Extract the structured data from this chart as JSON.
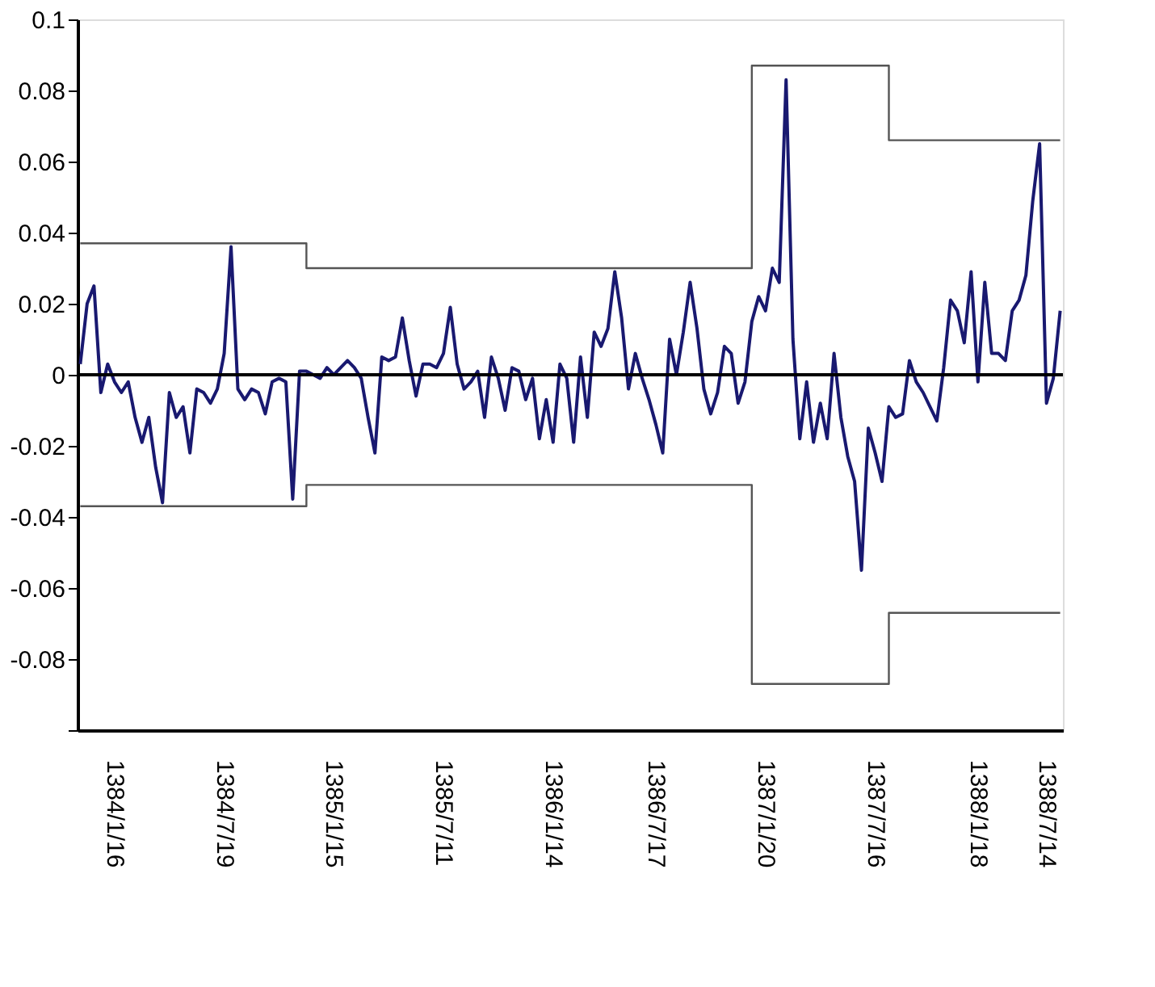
{
  "chart_data": {
    "type": "line",
    "categories": [
      null,
      null,
      null,
      null,
      null,
      "1384/1/16",
      null,
      null,
      null,
      null,
      null,
      null,
      null,
      null,
      null,
      null,
      null,
      null,
      null,
      null,
      null,
      "1384/7/19",
      null,
      null,
      null,
      null,
      null,
      null,
      null,
      null,
      null,
      null,
      null,
      null,
      null,
      null,
      null,
      "1385/1/15",
      null,
      null,
      null,
      null,
      null,
      null,
      null,
      null,
      null,
      null,
      null,
      null,
      null,
      null,
      null,
      "1385/7/11",
      null,
      null,
      null,
      null,
      null,
      null,
      null,
      null,
      null,
      null,
      null,
      null,
      null,
      null,
      null,
      "1386/1/14",
      null,
      null,
      null,
      null,
      null,
      null,
      null,
      null,
      null,
      null,
      null,
      null,
      null,
      null,
      "1386/7/17",
      null,
      null,
      null,
      null,
      null,
      null,
      null,
      null,
      null,
      null,
      null,
      null,
      null,
      null,
      null,
      "1387/1/20",
      null,
      null,
      null,
      null,
      null,
      null,
      null,
      null,
      null,
      null,
      null,
      null,
      null,
      null,
      null,
      "1387/7/16",
      null,
      null,
      null,
      null,
      null,
      null,
      null,
      null,
      null,
      null,
      null,
      null,
      null,
      null,
      "1388/1/18",
      null,
      null,
      null,
      null,
      null,
      null,
      null,
      null,
      null,
      "1388/7/14",
      null,
      null
    ],
    "series": [
      {
        "color": "#191970",
        "values": [
          0.003,
          0.02,
          0.025,
          -0.005,
          0.003,
          -0.002,
          -0.005,
          -0.002,
          -0.012,
          -0.019,
          -0.012,
          -0.026,
          -0.036,
          -0.005,
          -0.012,
          -0.009,
          -0.022,
          -0.004,
          -0.005,
          -0.008,
          -0.004,
          0.006,
          0.036,
          -0.004,
          -0.007,
          -0.004,
          -0.005,
          -0.011,
          -0.002,
          -0.001,
          -0.002,
          -0.035,
          0.001,
          0.001,
          0,
          -0.001,
          0.002,
          0,
          0.002,
          0.004,
          0.002,
          -0.001,
          -0.012,
          -0.022,
          0.005,
          0.004,
          0.005,
          0.016,
          0.004,
          -0.006,
          0.003,
          0.003,
          0.002,
          0.006,
          0.019,
          0.003,
          -0.004,
          -0.002,
          0.001,
          -0.012,
          0.005,
          -0.001,
          -0.01,
          0.002,
          0.001,
          -0.007,
          -0.001,
          -0.018,
          -0.007,
          -0.019,
          0.003,
          -0.001,
          -0.019,
          0.005,
          -0.012,
          0.012,
          0.008,
          0.013,
          0.029,
          0.016,
          -0.004,
          0.006,
          -0.001,
          -0.007,
          -0.014,
          -0.022,
          0.01,
          0,
          0.012,
          0.026,
          0.013,
          -0.004,
          -0.011,
          -0.005,
          0.008,
          0.006,
          -0.008,
          -0.002,
          0.015,
          0.022,
          0.018,
          0.03,
          0.026,
          0.083,
          0.01,
          -0.018,
          -0.002,
          -0.019,
          -0.008,
          -0.018,
          0.006,
          -0.012,
          -0.023,
          -0.03,
          -0.055,
          -0.015,
          -0.022,
          -0.03,
          -0.009,
          -0.012,
          -0.011,
          0.004,
          -0.002,
          -0.005,
          -0.009,
          -0.013,
          0.002,
          0.021,
          0.018,
          0.009,
          0.029,
          -0.002,
          0.026,
          0.006,
          0.006,
          0.004,
          0.018,
          0.021,
          0.028,
          0.049,
          0.065,
          -0.008,
          -0.001,
          0.018
        ]
      },
      {
        "type": "step",
        "color": "#555555",
        "values": [
          0.037,
          0.037,
          0.037,
          0.037,
          0.037,
          0.037,
          0.037,
          0.037,
          0.037,
          0.037,
          0.037,
          0.037,
          0.037,
          0.037,
          0.037,
          0.037,
          0.037,
          0.037,
          0.037,
          0.037,
          0.037,
          0.037,
          0.037,
          0.037,
          0.037,
          0.037,
          0.037,
          0.037,
          0.037,
          0.037,
          0.037,
          0.037,
          0.037,
          0.03,
          0.03,
          0.03,
          0.03,
          0.03,
          0.03,
          0.03,
          0.03,
          0.03,
          0.03,
          0.03,
          0.03,
          0.03,
          0.03,
          0.03,
          0.03,
          0.03,
          0.03,
          0.03,
          0.03,
          0.03,
          0.03,
          0.03,
          0.03,
          0.03,
          0.03,
          0.03,
          0.03,
          0.03,
          0.03,
          0.03,
          0.03,
          0.03,
          0.03,
          0.03,
          0.03,
          0.03,
          0.03,
          0.03,
          0.03,
          0.03,
          0.03,
          0.03,
          0.03,
          0.03,
          0.03,
          0.03,
          0.03,
          0.03,
          0.03,
          0.03,
          0.03,
          0.03,
          0.03,
          0.03,
          0.03,
          0.03,
          0.03,
          0.03,
          0.03,
          0.03,
          0.03,
          0.03,
          0.03,
          0.03,
          0.087,
          0.087,
          0.087,
          0.087,
          0.087,
          0.087,
          0.087,
          0.087,
          0.087,
          0.087,
          0.087,
          0.087,
          0.087,
          0.087,
          0.087,
          0.087,
          0.087,
          0.087,
          0.087,
          0.087,
          0.066,
          0.066,
          0.066,
          0.066,
          0.066,
          0.066,
          0.066,
          0.066,
          0.066,
          0.066,
          0.066,
          0.066,
          0.066,
          0.066,
          0.066,
          0.066,
          0.066,
          0.066,
          0.066,
          0.066,
          0.066,
          0.066,
          0.066,
          0.066,
          0.066,
          0.066
        ]
      },
      {
        "type": "step",
        "color": "#555555",
        "values": [
          -0.037,
          -0.037,
          -0.037,
          -0.037,
          -0.037,
          -0.037,
          -0.037,
          -0.037,
          -0.037,
          -0.037,
          -0.037,
          -0.037,
          -0.037,
          -0.037,
          -0.037,
          -0.037,
          -0.037,
          -0.037,
          -0.037,
          -0.037,
          -0.037,
          -0.037,
          -0.037,
          -0.037,
          -0.037,
          -0.037,
          -0.037,
          -0.037,
          -0.037,
          -0.037,
          -0.037,
          -0.037,
          -0.037,
          -0.031,
          -0.031,
          -0.031,
          -0.031,
          -0.031,
          -0.031,
          -0.031,
          -0.031,
          -0.031,
          -0.031,
          -0.031,
          -0.031,
          -0.031,
          -0.031,
          -0.031,
          -0.031,
          -0.031,
          -0.031,
          -0.031,
          -0.031,
          -0.031,
          -0.031,
          -0.031,
          -0.031,
          -0.031,
          -0.031,
          -0.031,
          -0.031,
          -0.031,
          -0.031,
          -0.031,
          -0.031,
          -0.031,
          -0.031,
          -0.031,
          -0.031,
          -0.031,
          -0.031,
          -0.031,
          -0.031,
          -0.031,
          -0.031,
          -0.031,
          -0.031,
          -0.031,
          -0.031,
          -0.031,
          -0.031,
          -0.031,
          -0.031,
          -0.031,
          -0.031,
          -0.031,
          -0.031,
          -0.031,
          -0.031,
          -0.031,
          -0.031,
          -0.031,
          -0.031,
          -0.031,
          -0.031,
          -0.031,
          -0.031,
          -0.031,
          -0.087,
          -0.087,
          -0.087,
          -0.087,
          -0.087,
          -0.087,
          -0.087,
          -0.087,
          -0.087,
          -0.087,
          -0.087,
          -0.087,
          -0.087,
          -0.087,
          -0.087,
          -0.087,
          -0.087,
          -0.087,
          -0.087,
          -0.087,
          -0.067,
          -0.067,
          -0.067,
          -0.067,
          -0.067,
          -0.067,
          -0.067,
          -0.067,
          -0.067,
          -0.067,
          -0.067,
          -0.067,
          -0.067,
          -0.067,
          -0.067,
          -0.067,
          -0.067,
          -0.067,
          -0.067,
          -0.067,
          -0.067,
          -0.067,
          -0.067,
          -0.067,
          -0.067,
          -0.067
        ]
      }
    ],
    "ylim": [
      -0.1,
      0.1
    ],
    "yticks": [
      0.1,
      0.08,
      0.06,
      0.04,
      0.02,
      0,
      -0.02,
      -0.04,
      -0.06,
      -0.08,
      {
        "value": -0.1,
        "label": null
      }
    ],
    "ref_lines": [
      {
        "axis": "y",
        "value": 0,
        "color": "#000000"
      }
    ],
    "grid": false
  }
}
